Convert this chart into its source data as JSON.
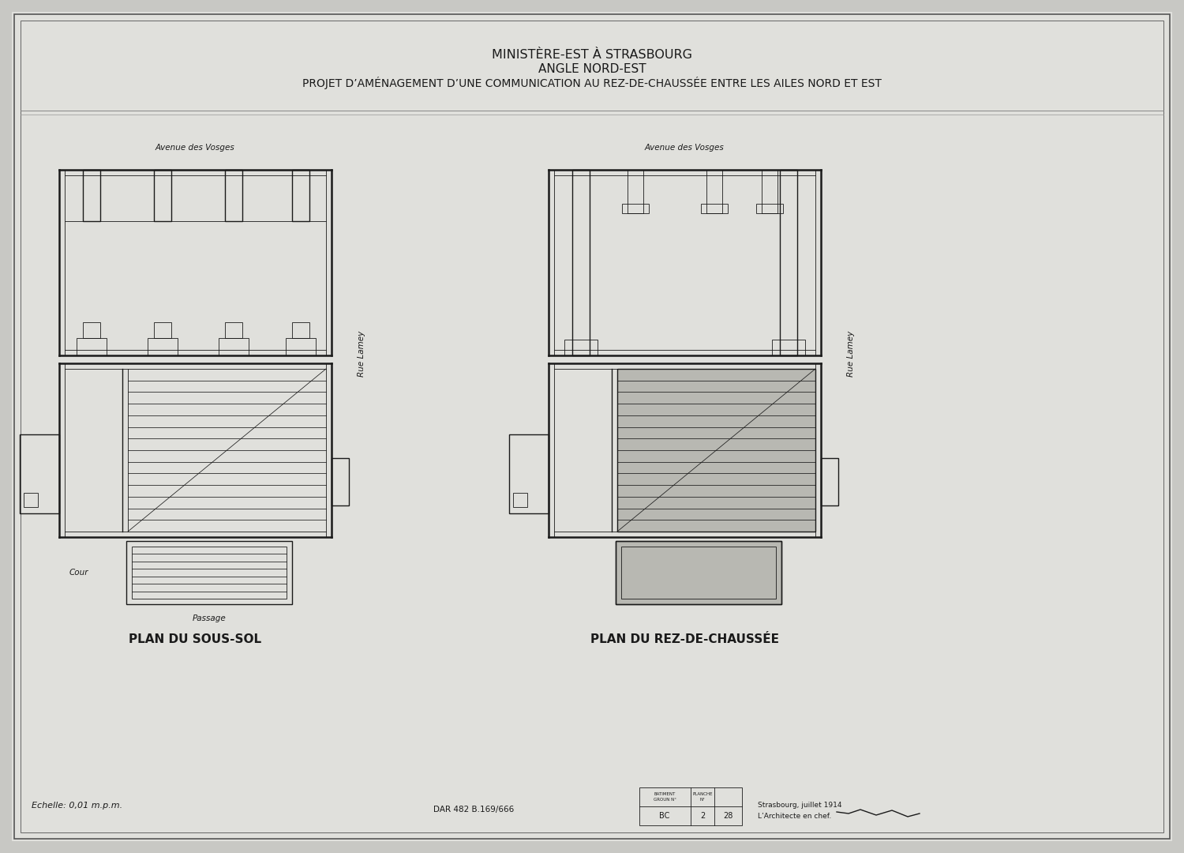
{
  "bg_color": "#c8c8c4",
  "paper_color": "#e0e0dc",
  "line_color": "#1a1a1a",
  "title1": "MINISTÈRE-EST À STRASBOURG",
  "title2": "ANGLE NORD-EST",
  "title3": "PROJET D’AMÉNAGEMENT D’UNE COMMUNICATION AU REZ-DE-CHAUSSÉE ENTRE LES AILES NORD ET EST",
  "label_sous_sol": "PLAN DU SOUS-SOL",
  "label_rez": "PLAN DU REZ-DE-CHAUSSÉE",
  "label_echelle": "Echelle: 0,01 m.p.m.",
  "label_avvosges_l": "Avenue des Vosges",
  "label_avvosges_r": "Avenue des Vosges",
  "label_ruelamey_l": "Rue Lamey",
  "label_ruelamey_r": "Rue Lamey",
  "label_passage": "Passage",
  "label_cour": "Cour",
  "label_dar": "DAR 482 B.169/666",
  "footer_line1": "Strasbourg, juillet 1914",
  "footer_line2": "L’Architecte en chef.",
  "bat_label": "BATIMENT",
  "groun_label": "GROUN N°",
  "planche_label": "PLANCHE",
  "planche_n_label": "N°",
  "bat_val": "BC",
  "groun_val": "2",
  "planche_val": "28"
}
